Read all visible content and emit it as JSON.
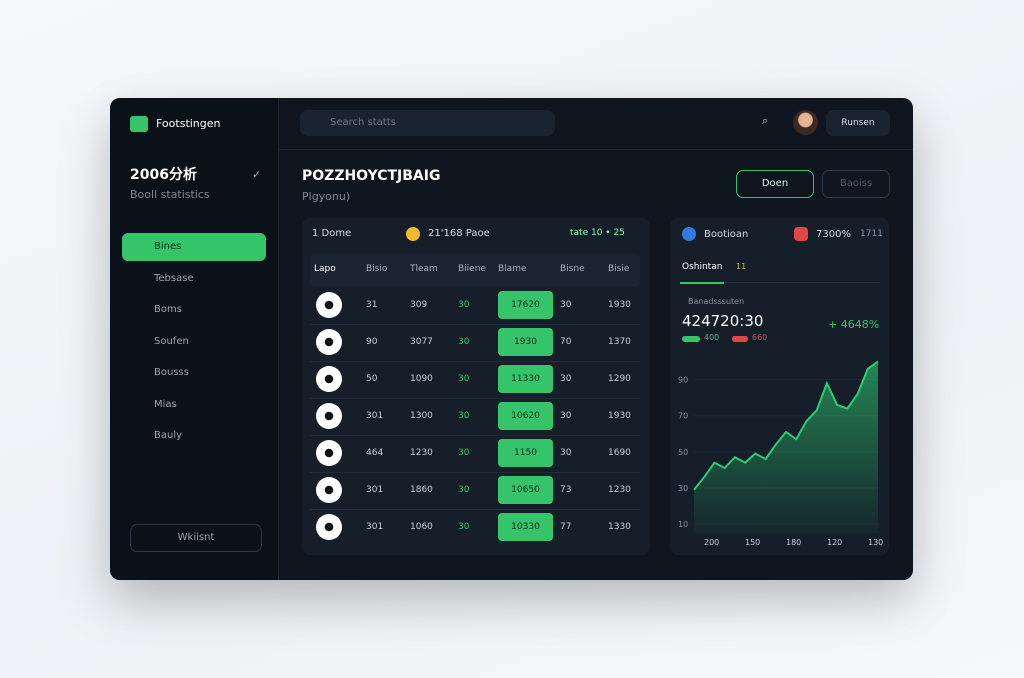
{
  "app": {
    "brand": "Footstingen",
    "search": "Search statts",
    "user": "Runsen"
  },
  "sidebar": {
    "title": "2006分析",
    "subtitle": "Booll statistics",
    "nav": [
      "Bines",
      "Tebsase",
      "Boms",
      "Soufen",
      "Bousss",
      "Mias",
      "Bauly"
    ],
    "footer": "Wkiisnt"
  },
  "main": {
    "title": "POZZHOYCTJBAIG",
    "subtitle": "Plgyonu)",
    "buttons": [
      "Doen",
      "Baoiss"
    ]
  },
  "table": {
    "filters": [
      "1 Dome",
      "21'168 Paoe",
      "tate 10 • 25"
    ],
    "columns": [
      "Lapo",
      "Bisio",
      "Tleam",
      "Biiene",
      "Blame",
      "Bisne",
      "Bisie"
    ],
    "rows": [
      [
        "31",
        "309",
        "30",
        "17620",
        "30",
        "1930"
      ],
      [
        "90",
        "3077",
        "30",
        "1930",
        "70",
        "1370"
      ],
      [
        "50",
        "1090",
        "30",
        "11330",
        "30",
        "1290"
      ],
      [
        "301",
        "1300",
        "30",
        "10620",
        "30",
        "1930"
      ],
      [
        "464",
        "1230",
        "30",
        "1150",
        "30",
        "1690"
      ],
      [
        "301",
        "1860",
        "30",
        "10650",
        "73",
        "1230"
      ],
      [
        "301",
        "1060",
        "30",
        "10330",
        "77",
        "1330"
      ]
    ]
  },
  "stats": {
    "badges": [
      "Bootioan",
      "7300%",
      "1711"
    ],
    "tab": "Oshintan",
    "tab_note": "11",
    "legend": "Banadsssuten",
    "big": "424720:30",
    "delta": "+ 4648%",
    "small": [
      "400",
      "660"
    ]
  },
  "chart_data": {
    "type": "area",
    "color": "#2ecc71",
    "values": [
      29,
      36,
      44,
      41,
      47,
      44,
      49,
      46,
      54,
      61,
      57,
      67,
      73,
      88,
      76,
      74,
      82,
      96,
      100
    ],
    "ylim": [
      5,
      102
    ],
    "yticks": [
      10,
      30,
      50,
      70,
      90
    ],
    "xlabels": [
      "200",
      "150",
      "180",
      "120",
      "130"
    ]
  }
}
